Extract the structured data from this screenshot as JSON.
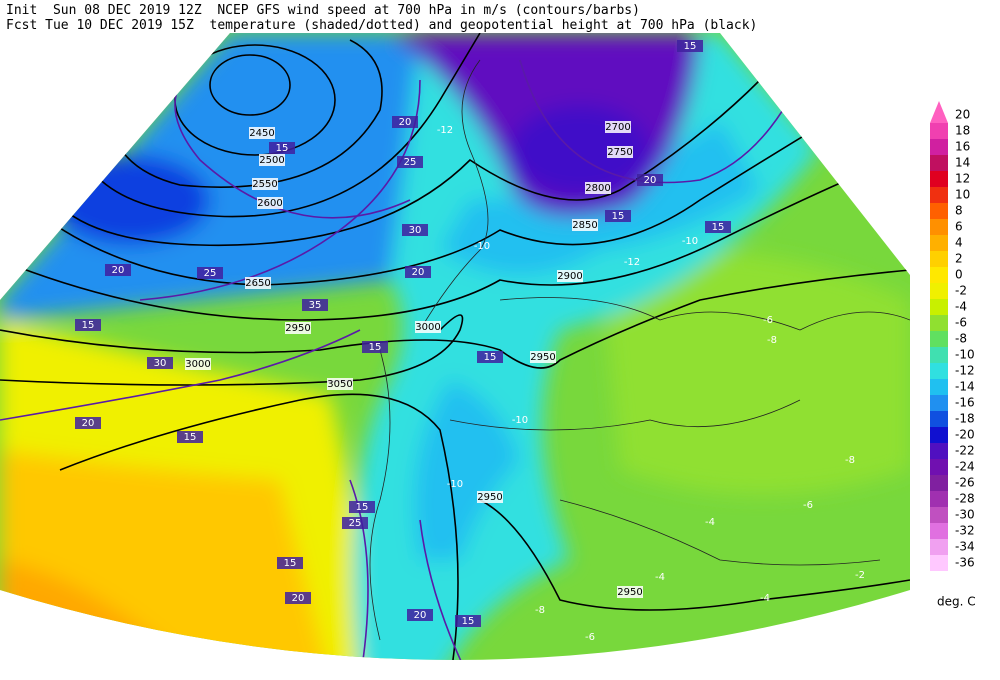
{
  "header": {
    "line1": "Init  Sun 08 DEC 2019 12Z  NCEP GFS wind speed at 700 hPa in m/s (contours/barbs)",
    "line2": "Fcst Tue 10 DEC 2019 15Z  temperature (shaded/dotted) and geopotential height at 700 hPa (black)"
  },
  "colorbar": {
    "levels": [
      20,
      18,
      16,
      14,
      12,
      10,
      8,
      6,
      4,
      2,
      0,
      -2,
      -4,
      -6,
      -8,
      -10,
      -12,
      -14,
      -16,
      -18,
      -20,
      -22,
      -24,
      -26,
      -28,
      -30,
      -32,
      -34,
      -36
    ],
    "colors": [
      "#ff60c0",
      "#f040b0",
      "#d020a0",
      "#c01060",
      "#e00020",
      "#f03010",
      "#ff6000",
      "#ff9000",
      "#ffb000",
      "#ffd000",
      "#ffe800",
      "#f0f000",
      "#c8f000",
      "#90e030",
      "#60e060",
      "#40e0b0",
      "#30e0e0",
      "#20c0f0",
      "#2090f0",
      "#1050e0",
      "#1010d0",
      "#5010c0",
      "#7010b0",
      "#8020a0",
      "#a030b0",
      "#c050c0",
      "#e070e0",
      "#f0a0f0",
      "#ffc8ff"
    ],
    "unit": "deg. C"
  },
  "map_labels": {
    "heights": [
      2450,
      2500,
      2550,
      2600,
      2650,
      2950,
      3000,
      3050,
      2700,
      2750,
      2800,
      2850,
      2900,
      2950,
      3000,
      2950,
      2950
    ],
    "wind": [
      15,
      20,
      15,
      20,
      25,
      15,
      15,
      15,
      20,
      15,
      15,
      15,
      20,
      15,
      25,
      15,
      20,
      20,
      15,
      25,
      30,
      35,
      30,
      20
    ],
    "temperature": [
      -12,
      -10,
      -10,
      -12,
      -8,
      -6,
      -8,
      -6,
      -4,
      -4,
      -4,
      -6,
      -8,
      -10,
      -10,
      -2
    ]
  }
}
